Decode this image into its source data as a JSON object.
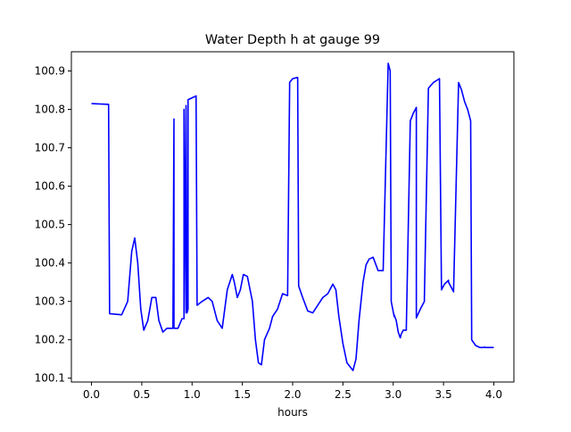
{
  "chart_data": {
    "type": "line",
    "title": "Water Depth h at gauge 99",
    "xlabel": "hours",
    "ylabel": "",
    "xlim": [
      -0.2,
      4.2
    ],
    "ylim": [
      100.09,
      100.95
    ],
    "xticks": [
      0.0,
      0.5,
      1.0,
      1.5,
      2.0,
      2.5,
      3.0,
      3.5,
      4.0
    ],
    "xtick_labels": [
      "0.0",
      "0.5",
      "1.0",
      "1.5",
      "2.0",
      "2.5",
      "3.0",
      "3.5",
      "4.0"
    ],
    "yticks": [
      100.1,
      100.2,
      100.3,
      100.4,
      100.5,
      100.6,
      100.7,
      100.8,
      100.9
    ],
    "ytick_labels": [
      "100.1",
      "100.2",
      "100.3",
      "100.4",
      "100.5",
      "100.6",
      "100.7",
      "100.8",
      "100.9"
    ],
    "grid": false,
    "line_color": "#0000ff",
    "series": [
      {
        "x": [
          0.0,
          0.17,
          0.18,
          0.3,
          0.36,
          0.4,
          0.43,
          0.46,
          0.49,
          0.52,
          0.56,
          0.6,
          0.64,
          0.67,
          0.71,
          0.75,
          0.79,
          0.81,
          0.82,
          0.82,
          0.84,
          0.86,
          0.9,
          0.92,
          0.92,
          0.94,
          0.94,
          0.95,
          0.96,
          0.96,
          1.0,
          1.04,
          1.05,
          1.1,
          1.16,
          1.2,
          1.25,
          1.3,
          1.35,
          1.4,
          1.42,
          1.45,
          1.48,
          1.51,
          1.55,
          1.6,
          1.63,
          1.66,
          1.69,
          1.72,
          1.77,
          1.8,
          1.85,
          1.9,
          1.95,
          1.97,
          1.97,
          2.0,
          2.05,
          2.06,
          2.1,
          2.15,
          2.2,
          2.25,
          2.3,
          2.35,
          2.4,
          2.43,
          2.46,
          2.5,
          2.54,
          2.57,
          2.6,
          2.63,
          2.66,
          2.7,
          2.73,
          2.76,
          2.8,
          2.85,
          2.9,
          2.95,
          2.97,
          2.98,
          2.98,
          3.01,
          3.01,
          3.03,
          3.05,
          3.07,
          3.08,
          3.1,
          3.13,
          3.17,
          3.2,
          3.23,
          3.23,
          3.27,
          3.31,
          3.31,
          3.35,
          3.4,
          3.46,
          3.48,
          3.48,
          3.51,
          3.55,
          3.55,
          3.6,
          3.65,
          3.68,
          3.71,
          3.74,
          3.77,
          3.78,
          3.78,
          3.82,
          3.86,
          3.9,
          3.91,
          3.91,
          3.93,
          3.96,
          3.98,
          4.0
        ],
        "y": [
          100.815,
          100.813,
          100.268,
          100.265,
          100.3,
          100.43,
          100.465,
          100.4,
          100.28,
          100.225,
          100.25,
          100.31,
          100.31,
          100.25,
          100.22,
          100.23,
          100.23,
          100.23,
          100.775,
          100.23,
          100.23,
          100.23,
          100.255,
          100.255,
          100.8,
          100.27,
          100.81,
          100.27,
          100.28,
          100.825,
          100.83,
          100.835,
          100.29,
          100.3,
          100.31,
          100.3,
          100.25,
          100.23,
          100.33,
          100.37,
          100.35,
          100.31,
          100.33,
          100.37,
          100.365,
          100.3,
          100.2,
          100.14,
          100.135,
          100.2,
          100.23,
          100.26,
          100.28,
          100.32,
          100.315,
          100.86,
          100.87,
          100.88,
          100.883,
          100.34,
          100.31,
          100.275,
          100.27,
          100.29,
          100.31,
          100.32,
          100.345,
          100.33,
          100.26,
          100.19,
          100.14,
          100.13,
          100.12,
          100.15,
          100.25,
          100.35,
          100.395,
          100.41,
          100.415,
          100.38,
          100.38,
          100.92,
          100.9,
          100.335,
          100.3,
          100.26,
          100.265,
          100.25,
          100.22,
          100.205,
          100.215,
          100.225,
          100.225,
          100.77,
          100.79,
          100.805,
          100.257,
          100.28,
          100.3,
          100.31,
          100.855,
          100.87,
          100.88,
          100.33,
          100.33,
          100.345,
          100.355,
          100.35,
          100.325,
          100.87,
          100.85,
          100.82,
          100.8,
          100.77,
          100.22,
          100.2,
          100.185,
          100.18,
          100.18,
          100.181,
          100.18,
          100.18,
          100.18,
          100.18,
          100.18
        ]
      }
    ]
  }
}
